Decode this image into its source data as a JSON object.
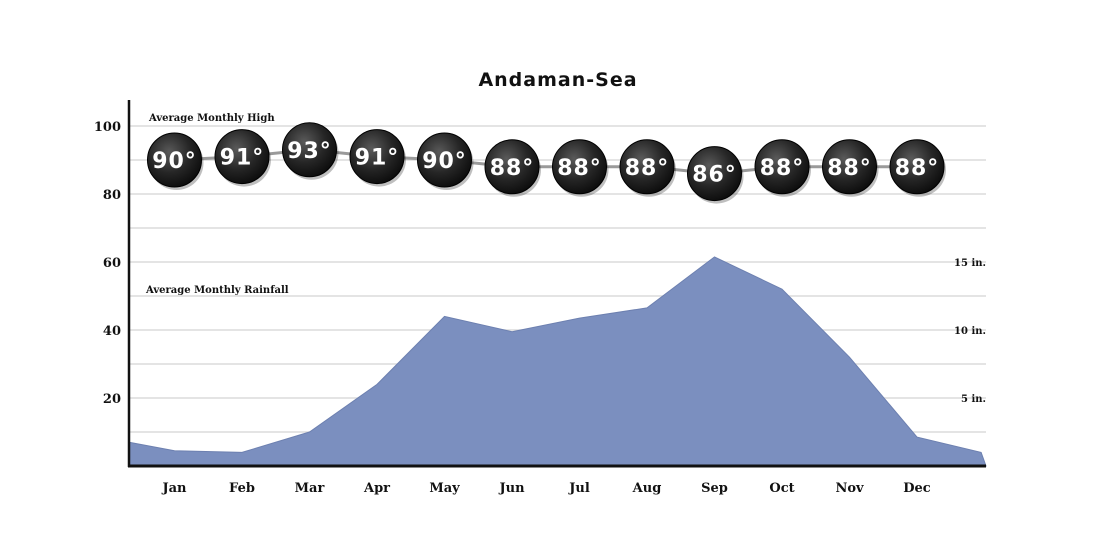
{
  "chart_data": {
    "type": "area",
    "title": "Andaman-Sea",
    "categories": [
      "Jan",
      "Feb",
      "Mar",
      "Apr",
      "May",
      "Jun",
      "Jul",
      "Aug",
      "Sep",
      "Oct",
      "Nov",
      "Dec"
    ],
    "ylim": [
      0,
      105
    ],
    "y_ticks": [
      20,
      40,
      60,
      80,
      100
    ],
    "y_tick_labels": [
      "20",
      "40",
      "60",
      "80",
      "100"
    ],
    "grid": true,
    "series": [
      {
        "name": "Average Monthly High",
        "kind": "line-bubbles",
        "values": [
          90,
          91,
          93,
          91,
          90,
          88,
          88,
          88,
          86,
          88,
          88,
          88
        ],
        "labels": [
          "90°",
          "91°",
          "93°",
          "91°",
          "90°",
          "88°",
          "88°",
          "88°",
          "86°",
          "88°",
          "88°",
          "88°"
        ]
      },
      {
        "name": "Average Monthly Rainfall",
        "kind": "area",
        "color": "#7b8fbf",
        "x": [
          -0.7,
          0,
          1,
          2,
          3,
          4,
          5,
          6,
          7,
          8,
          9,
          10,
          11,
          11.95
        ],
        "values": [
          7,
          4.5,
          4,
          10,
          24,
          44,
          39.5,
          43.5,
          46.5,
          61.5,
          52,
          32,
          8.5,
          4
        ],
        "secondary_axis": {
          "ticks": [
            5,
            10,
            15
          ],
          "tick_positions": [
            20,
            40,
            60
          ],
          "tick_labels": [
            "5 in.",
            "10 in.",
            "15 in."
          ]
        }
      }
    ]
  }
}
